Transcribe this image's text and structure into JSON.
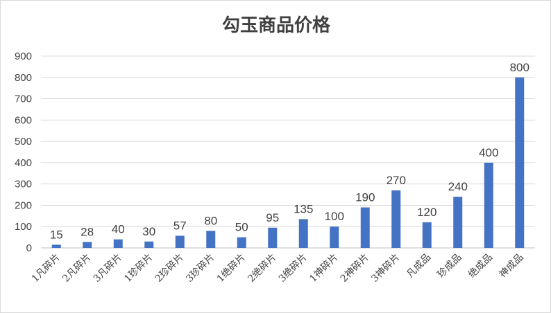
{
  "chart_data": {
    "type": "bar",
    "title": "勾玉商品价格",
    "xlabel": "",
    "ylabel": "",
    "categories": [
      "1凡碎片",
      "2凡碎片",
      "3凡碎片",
      "1珍碎片",
      "2珍碎片",
      "3珍碎片",
      "1绝碎片",
      "2绝碎片",
      "3绝碎片",
      "1神碎片",
      "2神碎片",
      "3神碎片",
      "凡成品",
      "珍成品",
      "绝成品",
      "神成品"
    ],
    "values": [
      15,
      28,
      40,
      30,
      57,
      80,
      50,
      95,
      135,
      100,
      190,
      270,
      120,
      240,
      400,
      800
    ],
    "ylim": [
      0,
      900
    ],
    "yticks": [
      0,
      100,
      200,
      300,
      400,
      500,
      600,
      700,
      800,
      900
    ],
    "grid": true,
    "legend": "none",
    "bar_color": "#4472C4",
    "data_labels": true
  }
}
